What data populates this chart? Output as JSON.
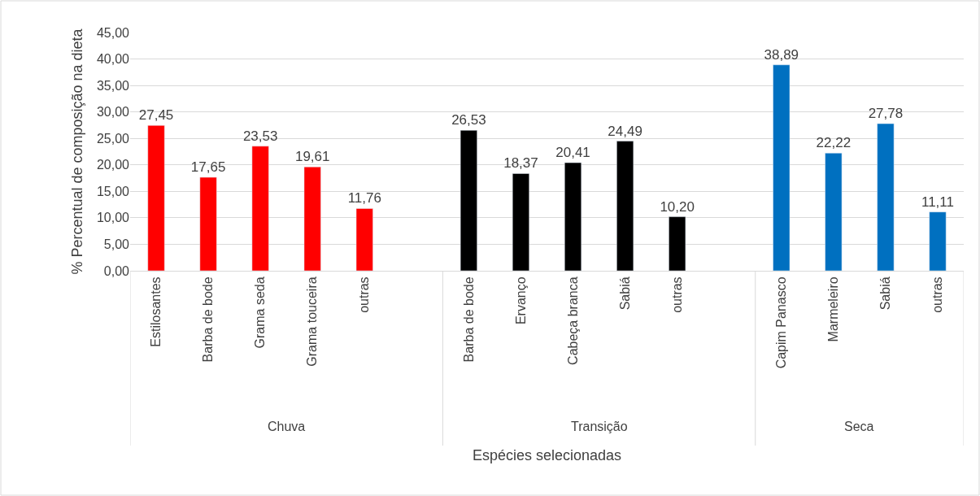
{
  "chart_data": {
    "type": "bar",
    "ylabel": "% Percentual de composição na dieta",
    "categories": [
      "Estilosantes",
      "Barba de bode",
      "Grama seda",
      "Grama touceira",
      "outras",
      null,
      "Barba de bode",
      "Ervanço",
      "Cabeça branca",
      "Sabiá",
      "outras",
      null,
      "Capim Panasco",
      "Marmeleiro",
      "Sabiá",
      "outras"
    ],
    "series": [
      {
        "color": "#ff0000",
        "values": [
          27.45,
          17.65,
          23.53,
          19.61,
          11.76,
          null,
          null,
          null,
          null,
          null,
          null,
          null,
          null,
          null,
          null,
          null
        ],
        "value_labels": [
          "27,45",
          "17,65",
          "23,53",
          "19,61",
          "11,76",
          null,
          null,
          null,
          null,
          null,
          null,
          null,
          null,
          null,
          null,
          null
        ]
      },
      {
        "color": "#000000",
        "values": [
          null,
          null,
          null,
          null,
          null,
          null,
          26.53,
          18.37,
          20.41,
          24.49,
          10.2,
          null,
          null,
          null,
          null,
          null
        ],
        "value_labels": [
          null,
          null,
          null,
          null,
          null,
          null,
          "26,53",
          "18,37",
          "20,41",
          "24,49",
          "10,20",
          null,
          null,
          null,
          null,
          null
        ]
      },
      {
        "color": "#0070c0",
        "values": [
          null,
          null,
          null,
          null,
          null,
          null,
          null,
          null,
          null,
          null,
          null,
          null,
          38.89,
          22.22,
          27.78,
          11.11
        ],
        "value_labels": [
          null,
          null,
          null,
          null,
          null,
          null,
          null,
          null,
          null,
          null,
          null,
          null,
          "38,89",
          "22,22",
          "27,78",
          "11,11"
        ]
      }
    ],
    "ylim": [
      0,
      45
    ],
    "yticks": [
      {
        "value": 0,
        "label": "0,00"
      },
      {
        "value": 5,
        "label": "5,00"
      },
      {
        "value": 10,
        "label": "10,00"
      },
      {
        "value": 15,
        "label": "15,00"
      },
      {
        "value": 20,
        "label": "20,00"
      },
      {
        "value": 25,
        "label": "25,00"
      },
      {
        "value": 30,
        "label": "30,00"
      },
      {
        "value": 35,
        "label": "35,00"
      },
      {
        "value": 40,
        "label": "40,00"
      },
      {
        "value": 45,
        "label": "45,00"
      }
    ],
    "annotations": [
      "Chuva",
      "Transição",
      "Seca",
      "Espécies selecionadas"
    ],
    "grid": "y",
    "legend": false
  }
}
